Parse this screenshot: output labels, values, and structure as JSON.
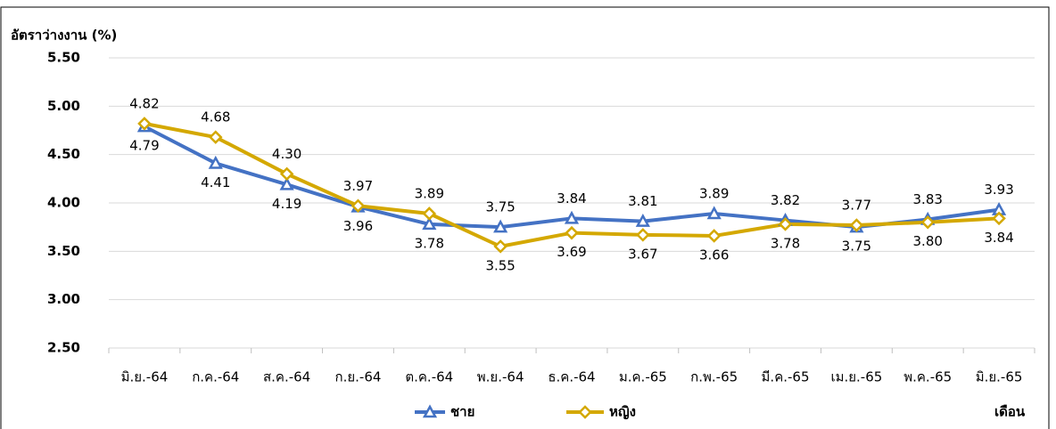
{
  "chart_data": {
    "type": "line",
    "y_axis_label": "อัตราว่างงาน (%)",
    "x_axis_label": "เดือน",
    "categories": [
      "มิ.ย.-64",
      "ก.ค.-64",
      "ส.ค.-64",
      "ก.ย.-64",
      "ต.ค.-64",
      "พ.ย.-64",
      "ธ.ค.-64",
      "ม.ค.-65",
      "ก.พ.-65",
      "มี.ค.-65",
      "เม.ย.-65",
      "พ.ค.-65",
      "มิ.ย.-65"
    ],
    "series": [
      {
        "name": "ชาย",
        "color": "#4472c4",
        "marker": "triangle",
        "values": [
          4.79,
          4.41,
          4.19,
          3.96,
          3.78,
          3.75,
          3.84,
          3.81,
          3.89,
          3.82,
          3.75,
          3.83,
          3.93
        ],
        "value_labels": [
          "4.79",
          "4.41",
          "4.19",
          "3.96",
          "3.78",
          "3.75",
          "3.84",
          "3.81",
          "3.89",
          "3.82",
          "3.75",
          "3.83",
          "3.93"
        ]
      },
      {
        "name": "หญิง",
        "color": "#d4a800",
        "marker": "diamond",
        "values": [
          4.82,
          4.68,
          4.3,
          3.97,
          3.89,
          3.55,
          3.69,
          3.67,
          3.66,
          3.78,
          3.77,
          3.8,
          3.84
        ],
        "value_labels": [
          "4.82",
          "4.68",
          "4.30",
          "3.97",
          "3.89",
          "3.55",
          "3.69",
          "3.67",
          "3.66",
          "3.78",
          "3.77",
          "3.80",
          "3.84"
        ]
      }
    ],
    "ylim": [
      2.5,
      5.5
    ],
    "yticks": [
      {
        "value": 2.5,
        "label": "2.50"
      },
      {
        "value": 3,
        "label": "3.00"
      },
      {
        "value": 3.5,
        "label": "3.50"
      },
      {
        "value": 4,
        "label": "4.00"
      },
      {
        "value": 4.5,
        "label": "4.50"
      },
      {
        "value": 5,
        "label": "5.00"
      },
      {
        "value": 5.5,
        "label": "5.50"
      }
    ],
    "grid": true,
    "legend": "bottom"
  }
}
